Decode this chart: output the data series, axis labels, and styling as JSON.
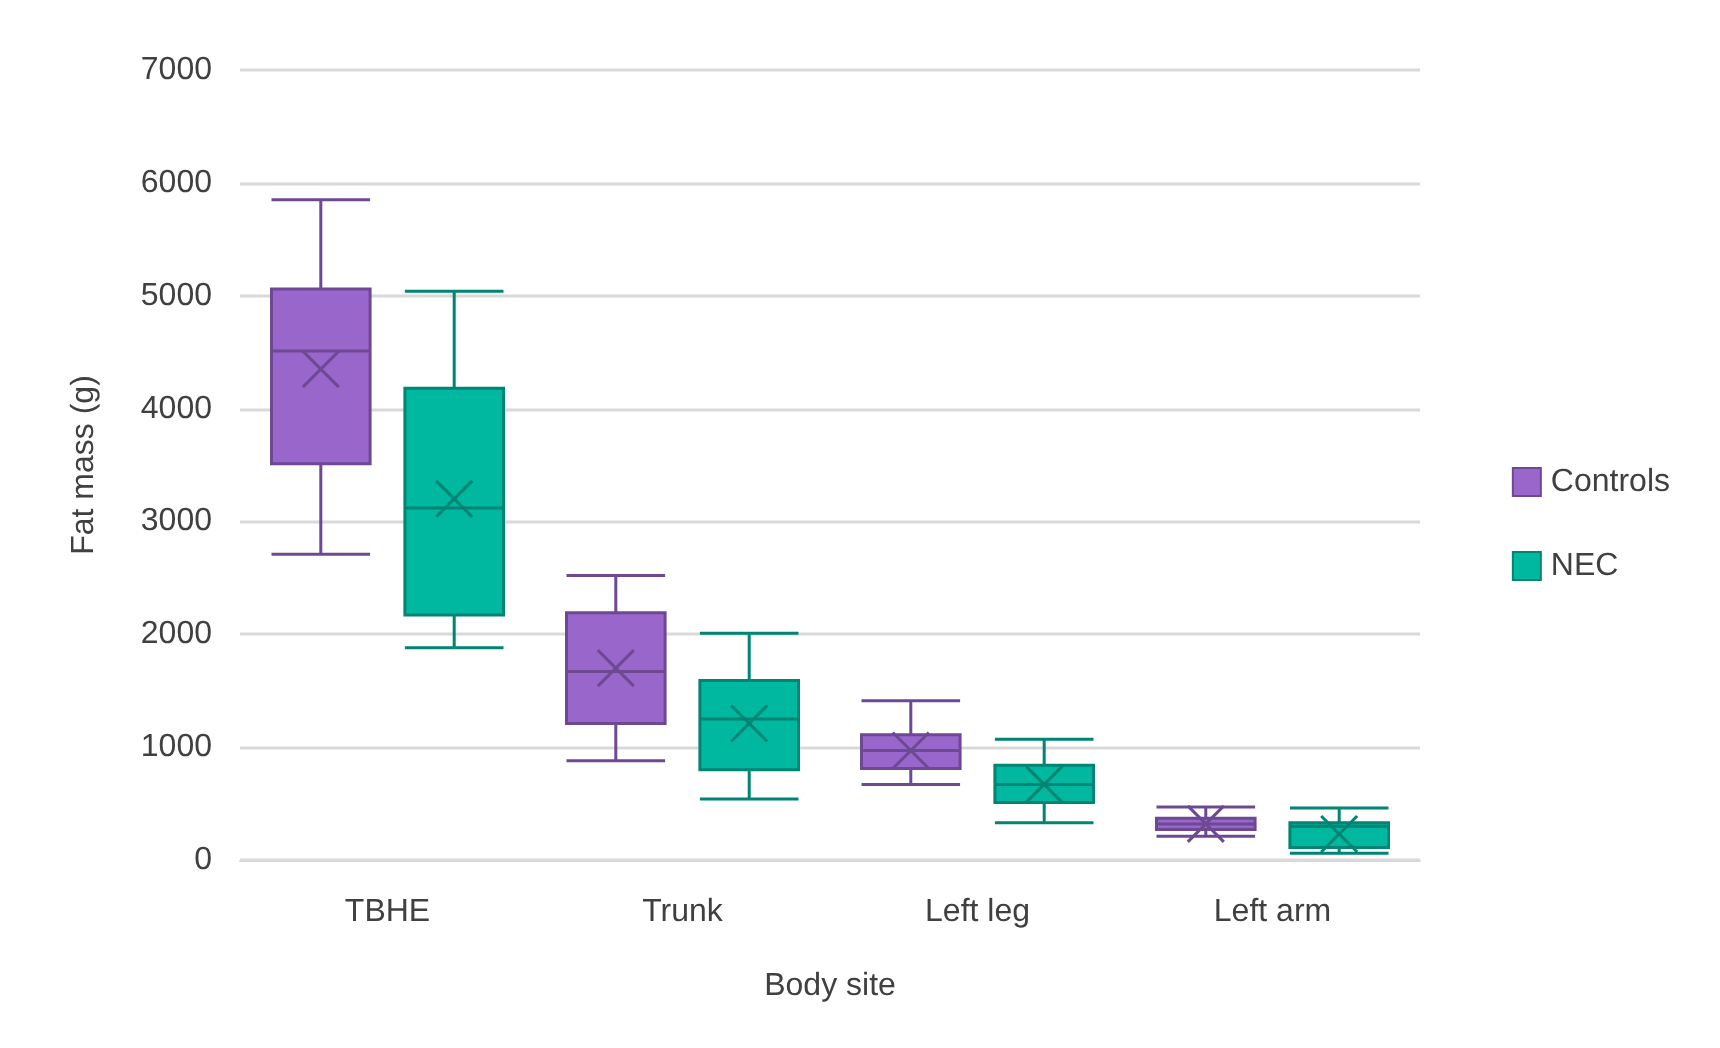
{
  "chart_data": {
    "type": "box",
    "xlabel": "Body site",
    "ylabel": "Fat mass (g)",
    "categories": [
      "TBHE",
      "Trunk",
      "Left leg",
      "Left arm"
    ],
    "series": [
      {
        "name": "Controls",
        "color": "#9966cc",
        "boxes": [
          {
            "low": 2710,
            "q1": 3510,
            "median": 4510,
            "q3": 5060,
            "high": 5850,
            "mean": 4350
          },
          {
            "low": 880,
            "q1": 1210,
            "median": 1670,
            "q3": 2190,
            "high": 2520,
            "mean": 1700
          },
          {
            "low": 670,
            "q1": 810,
            "median": 970,
            "q3": 1110,
            "high": 1410,
            "mean": 970
          },
          {
            "low": 210,
            "q1": 270,
            "median": 320,
            "q3": 370,
            "high": 470,
            "mean": 320
          }
        ]
      },
      {
        "name": "NEC",
        "color": "#00b8a0",
        "boxes": [
          {
            "low": 1880,
            "q1": 2170,
            "median": 3120,
            "q3": 4180,
            "high": 5040,
            "mean": 3200
          },
          {
            "low": 540,
            "q1": 800,
            "median": 1250,
            "q3": 1590,
            "high": 2010,
            "mean": 1210
          },
          {
            "low": 330,
            "q1": 510,
            "median": 670,
            "q3": 840,
            "high": 1070,
            "mean": 670
          },
          {
            "low": 60,
            "q1": 110,
            "median": 300,
            "q3": 330,
            "high": 460,
            "mean": 230
          }
        ]
      }
    ],
    "ylim": [
      0,
      7000
    ],
    "yticks": [
      0,
      1000,
      2000,
      3000,
      4000,
      5000,
      6000,
      7000
    ],
    "grid": "y",
    "legend": "right"
  }
}
